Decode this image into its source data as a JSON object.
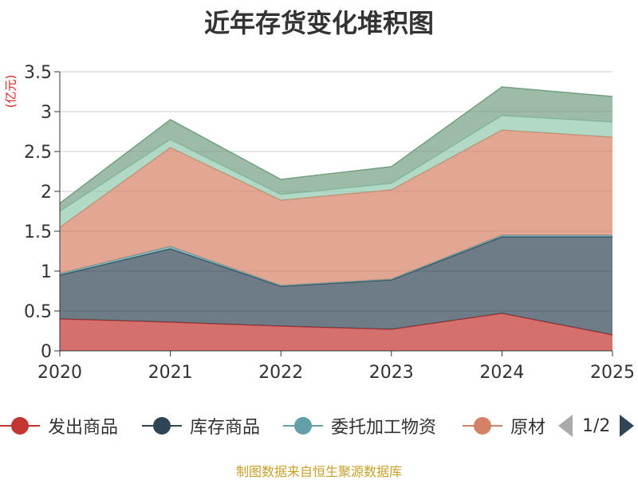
{
  "title": "近年存货变化堆积图",
  "unit": "(亿元)",
  "source": "制图数据来自恒生聚源数据库",
  "legend": {
    "items": [
      "发出商品",
      "库存商品",
      "委托加工物资",
      "原材"
    ],
    "page_indicator": "1/2"
  },
  "chart_data": {
    "type": "area",
    "stacked": true,
    "title": "近年存货变化堆积图",
    "ylabel": "(亿元)",
    "xlabel": "",
    "x": [
      "2020",
      "2021",
      "2022",
      "2023",
      "2024",
      "2025"
    ],
    "ylim": [
      0,
      3.5
    ],
    "yticks": [
      0,
      0.5,
      1,
      1.5,
      2,
      2.5,
      3,
      3.5
    ],
    "grid": true,
    "legend_position": "bottom",
    "series": [
      {
        "name": "发出商品",
        "color": "#c23531",
        "values": [
          0.4,
          0.36,
          0.31,
          0.27,
          0.47,
          0.2
        ]
      },
      {
        "name": "库存商品",
        "color": "#2f4554",
        "values": [
          0.55,
          0.92,
          0.5,
          0.62,
          0.96,
          1.23
        ]
      },
      {
        "name": "委托加工物资",
        "color": "#61a0a8",
        "values": [
          0.02,
          0.03,
          0.01,
          0.01,
          0.02,
          0.02
        ]
      },
      {
        "name": "原材",
        "color": "#d48265",
        "values": [
          0.58,
          1.24,
          1.07,
          1.12,
          1.32,
          1.23
        ]
      },
      {
        "color": "#91c7ae",
        "values": [
          0.2,
          0.1,
          0.07,
          0.08,
          0.18,
          0.19
        ]
      },
      {
        "color": "#749f83",
        "values": [
          0.1,
          0.25,
          0.19,
          0.21,
          0.36,
          0.32
        ]
      }
    ]
  }
}
